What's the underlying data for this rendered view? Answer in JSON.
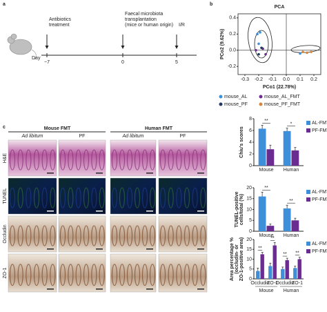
{
  "panel_labels": [
    "a",
    "b",
    "c"
  ],
  "timeline": {
    "day_label": "Day",
    "events": [
      {
        "day": "−7",
        "label_lines": [
          "Antibiotics",
          "treatment"
        ]
      },
      {
        "day": "0",
        "label_lines": [
          "Faecal microbiota",
          "transplantation",
          "(mice or human origin)"
        ]
      },
      {
        "day": "5",
        "label_lines": [
          "I/R"
        ]
      }
    ]
  },
  "histology": {
    "groups": [
      "Mouse FMT",
      "Human FMT"
    ],
    "conditions": [
      "Ad libitum",
      "PF",
      "Ad libitum",
      "PF"
    ],
    "stains": [
      "H&E",
      "TUNEL",
      "Occludin",
      "ZO-1"
    ]
  },
  "chart_data": [
    {
      "type": "scatter",
      "title": "PCA",
      "x_label": "PCo1 (22.78%)",
      "y_label": "PCo2 (9.62%)",
      "xlim": [
        -0.35,
        0.25
      ],
      "ylim": [
        -0.3,
        0.45
      ],
      "xticks": [
        -0.3,
        -0.2,
        -0.1,
        {
          "value": 0,
          "label": "0.0"
        },
        0.1,
        0.2
      ],
      "yticks": [
        -0.2,
        {
          "value": 0,
          "label": "0.0"
        },
        0.2,
        0.4
      ],
      "series": [
        {
          "name": "mouse_AL",
          "color": "#3d8fd9",
          "x": [
            -0.21,
            -0.19,
            -0.2,
            0.1
          ],
          "y": [
            0.2,
            0.22,
            0.08,
            -0.04
          ]
        },
        {
          "name": "mouse_AL_FMT",
          "color": "#6a2c91",
          "x": [
            -0.17,
            -0.15,
            -0.22
          ],
          "y": [
            0.02,
            -0.05,
            0.0
          ]
        },
        {
          "name": "mouse_PF",
          "color": "#1e3a5f",
          "x": [
            -0.2,
            -0.18
          ],
          "y": [
            -0.05,
            0.03
          ]
        },
        {
          "name": "mouse_PF_FMT",
          "color": "#d6863a",
          "x": [
            0.12,
            0.15,
            0.18
          ],
          "y": [
            -0.02,
            -0.03,
            -0.02
          ]
        }
      ]
    },
    {
      "type": "bar",
      "y_label_lines": [
        "Chiu's scores"
      ],
      "categories": [
        "Mouse",
        "Human"
      ],
      "ylim": [
        0,
        8
      ],
      "yticks": [
        0,
        2,
        4,
        6,
        8
      ],
      "significance": [
        "**",
        "*"
      ],
      "series": [
        {
          "name": "AL-FMT",
          "color": "#3d8fd9",
          "values": [
            6.3,
            5.9
          ],
          "errors": [
            0.6,
            0.5
          ]
        },
        {
          "name": "PF-FMT",
          "color": "#6a2c91",
          "values": [
            2.8,
            2.6
          ],
          "errors": [
            0.7,
            0.5
          ]
        }
      ]
    },
    {
      "type": "bar",
      "y_label_lines": [
        "TUNEL-positive",
        "cells/total (%)"
      ],
      "categories": [
        "Mouse",
        "Human"
      ],
      "ylim": [
        0,
        20
      ],
      "yticks": [
        0,
        5,
        10,
        15,
        20
      ],
      "significance": [
        "**",
        "**"
      ],
      "series": [
        {
          "name": "AL-FMT",
          "color": "#3d8fd9",
          "values": [
            16,
            10.5
          ],
          "errors": [
            2,
            1.5
          ]
        },
        {
          "name": "PF-FMT",
          "color": "#6a2c91",
          "values": [
            2.5,
            5
          ],
          "errors": [
            0.8,
            1
          ]
        }
      ]
    },
    {
      "type": "bar",
      "y_label_lines": [
        "Area percentage %",
        "(occludin- or",
        "ZO-1-positive area)"
      ],
      "categories": [
        "Occludin",
        "ZO-1",
        "Occludin",
        "ZO-1"
      ],
      "group_labels": [
        "Mouse",
        "Human"
      ],
      "ylim": [
        0,
        20
      ],
      "yticks": [
        0,
        5,
        10,
        15,
        20
      ],
      "significance": [
        "**",
        "**",
        "**",
        "**"
      ],
      "series": [
        {
          "name": "AL-FMT",
          "color": "#3d8fd9",
          "values": [
            4,
            6.5,
            5,
            5.5
          ],
          "errors": [
            1.5,
            1.5,
            1,
            1
          ]
        },
        {
          "name": "PF-FMT",
          "color": "#6a2c91",
          "values": [
            12.5,
            17,
            9.5,
            10
          ],
          "errors": [
            1,
            1.5,
            1,
            1
          ]
        }
      ]
    }
  ]
}
